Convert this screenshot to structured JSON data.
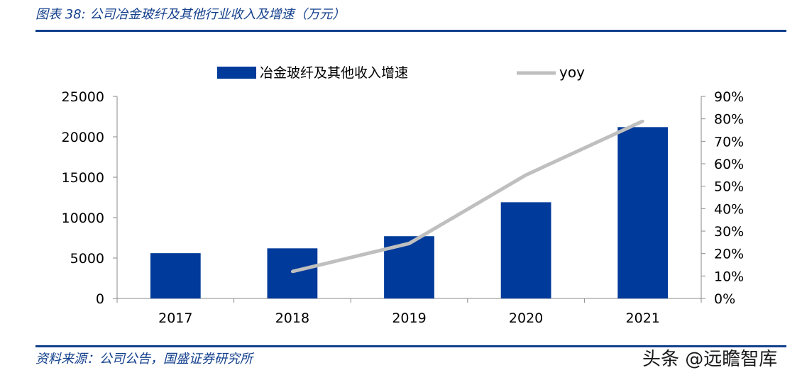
{
  "header": {
    "title": "图表 38:  公司冶金玻纤及其他行业收入及增速（万元）"
  },
  "footer": {
    "source": "资料来源：公司公告，国盛证券研究所",
    "watermark": "头条 @远瞻智库"
  },
  "colors": {
    "bar": "#003a9a",
    "line": "#bfbfbf",
    "axis": "#8a8a8a",
    "brand": "#123f8c"
  },
  "chart_data": {
    "type": "bar",
    "categories": [
      "2017",
      "2018",
      "2019",
      "2020",
      "2021"
    ],
    "series": [
      {
        "name": "冶金玻纤及其他收入增速",
        "type": "bar",
        "axis": "left",
        "values": [
          5600,
          6200,
          7700,
          11900,
          21200
        ]
      },
      {
        "name": "yoy",
        "type": "line",
        "axis": "right",
        "values": [
          null,
          0.12,
          0.245,
          0.55,
          0.79
        ]
      }
    ],
    "y_left": {
      "min": 0,
      "max": 25000,
      "ticks": [
        "0",
        "5000",
        "10000",
        "15000",
        "20000",
        "25000"
      ]
    },
    "y_right": {
      "min": 0,
      "max": 0.9,
      "ticks": [
        "0%",
        "10%",
        "20%",
        "30%",
        "40%",
        "50%",
        "60%",
        "70%",
        "80%",
        "90%"
      ]
    },
    "legend": {
      "position": "top"
    },
    "grid": false
  }
}
